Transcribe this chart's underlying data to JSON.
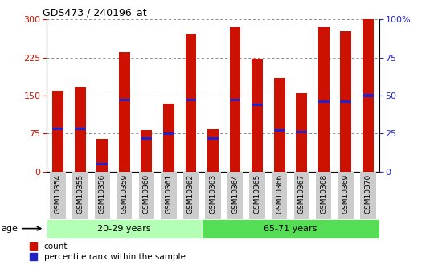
{
  "title": "GDS473 / 240196_at",
  "samples": [
    "GSM10354",
    "GSM10355",
    "GSM10356",
    "GSM10359",
    "GSM10360",
    "GSM10361",
    "GSM10362",
    "GSM10363",
    "GSM10364",
    "GSM10365",
    "GSM10366",
    "GSM10367",
    "GSM10368",
    "GSM10369",
    "GSM10370"
  ],
  "counts": [
    160,
    168,
    65,
    235,
    82,
    135,
    272,
    83,
    285,
    223,
    185,
    155,
    285,
    277,
    300
  ],
  "percentile_ranks": [
    28,
    28,
    5,
    47,
    22,
    25,
    47,
    22,
    47,
    44,
    27,
    26,
    46,
    46,
    50
  ],
  "groups": [
    {
      "label": "20-29 years",
      "start": 0,
      "end": 7,
      "color": "#b3ffb3"
    },
    {
      "label": "65-71 years",
      "start": 7,
      "end": 15,
      "color": "#55dd55"
    }
  ],
  "bar_color": "#cc1100",
  "percentile_color": "#2222cc",
  "ylim_left": [
    0,
    300
  ],
  "ylim_right": [
    0,
    100
  ],
  "yticks_left": [
    0,
    75,
    150,
    225,
    300
  ],
  "yticks_right": [
    0,
    25,
    50,
    75,
    100
  ],
  "bar_width": 0.5,
  "plot_bg_color": "#ffffff",
  "age_label": "age",
  "legend_count": "count",
  "legend_percentile": "percentile rank within the sample",
  "tick_bg_color": "#cccccc"
}
